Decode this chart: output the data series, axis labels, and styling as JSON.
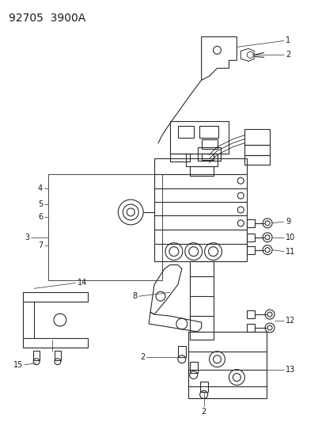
{
  "title": "92705  3900A",
  "bg_color": "#ffffff",
  "line_color": "#2a2a2a",
  "label_color": "#1a1a1a",
  "label_fontsize": 7.0,
  "title_fontsize": 10,
  "fig_width": 4.07,
  "fig_height": 5.33,
  "dpi": 100
}
